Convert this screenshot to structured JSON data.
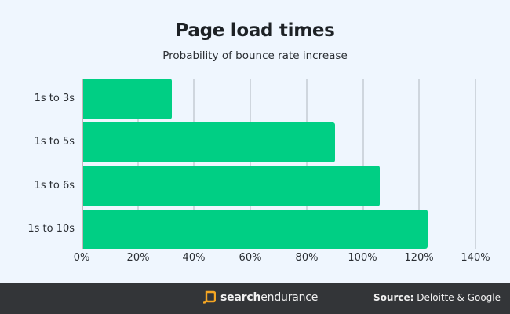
{
  "header": {
    "title": "Page load times",
    "subtitle": "Probability of bounce rate increase"
  },
  "chart_data": {
    "type": "bar",
    "orientation": "horizontal",
    "title": "Page load times",
    "subtitle": "Probability of bounce rate increase",
    "categories": [
      "1s to 3s",
      "1s to 5s",
      "1s to 6s",
      "1s to 10s"
    ],
    "values": [
      32,
      90,
      106,
      123
    ],
    "xlabel": "",
    "ylabel": "",
    "xlim": [
      0,
      140
    ],
    "x_ticks": [
      "0%",
      "20%",
      "40%",
      "60%",
      "80%",
      "100%",
      "120%",
      "140%"
    ],
    "grid": "vertical",
    "legend": "none",
    "bar_color": "#00cf84"
  },
  "footer": {
    "brand_bold": "search",
    "brand_light": "endurance",
    "source_label": "Source:",
    "source_value": " Deloitte & Google"
  },
  "colors": {
    "background": "#eff6fe",
    "bar": "#00cf84",
    "footer": "#333538",
    "brand_accent": "#f5a623"
  }
}
